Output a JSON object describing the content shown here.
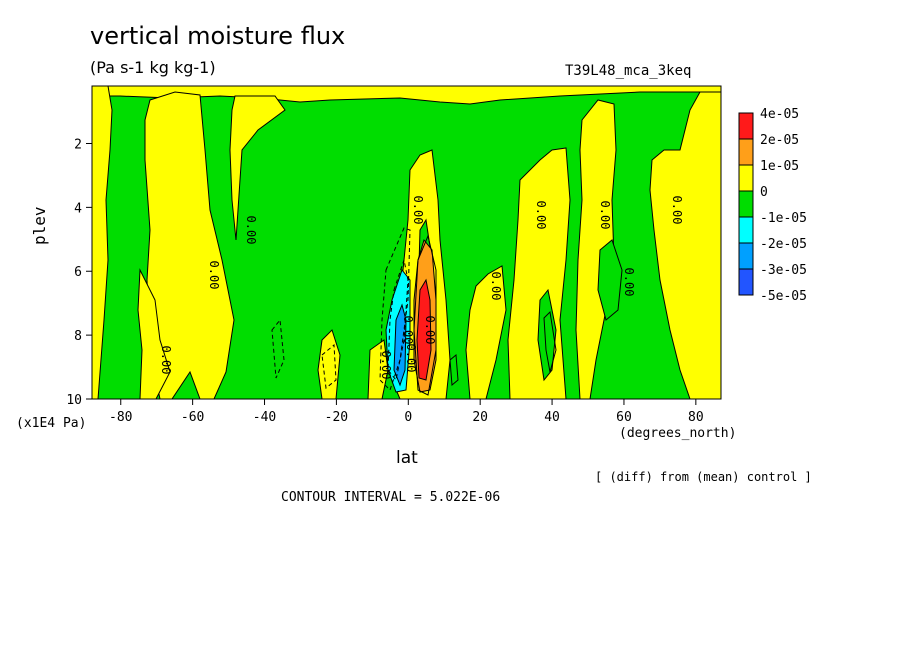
{
  "chart_data": {
    "type": "heatmap",
    "title": "vertical moisture flux",
    "units": "(Pa s-1 kg kg-1)",
    "run_label": "T39L48_mca_3keq",
    "xlabel": "lat",
    "x_units": "(degrees_north)",
    "ylabel": "plev",
    "y_units": "(x1E4 Pa)",
    "diff_note": "[ (diff) from (mean) control ]",
    "contour_interval": "CONTOUR INTERVAL = 5.022E-06",
    "xlim": [
      -88,
      87
    ],
    "ylim": [
      10,
      0.2
    ],
    "x_ticks": [
      -80,
      -60,
      -40,
      -20,
      0,
      20,
      40,
      60,
      80
    ],
    "y_ticks": [
      2,
      4,
      6,
      8,
      10
    ],
    "contour_labels": [
      "0.00",
      "0.00",
      "0.00",
      "0.00",
      "0.00",
      "0.00",
      "0.00",
      "0.00",
      "0.00",
      "0.00",
      "0.00",
      "0.00",
      "0.00"
    ],
    "legend": {
      "labels": [
        "4e-05",
        "2e-05",
        "1e-05",
        "0",
        "-1e-05",
        "-2e-05",
        "-3e-05",
        "-5e-05"
      ],
      "colors": [
        "#ff1a1a",
        "#ff9f19",
        "#ffff00",
        "#00dd00",
        "#00ffff",
        "#00a0ff",
        "#2255ff"
      ]
    },
    "colors": {
      "negative": "#00dd00",
      "positive": "#ffff00",
      "mid_positive": "#ff9f19",
      "high_positive": "#ff1a1a",
      "low_negative": "#00ffff",
      "lower_negative": "#00a0ff"
    }
  }
}
